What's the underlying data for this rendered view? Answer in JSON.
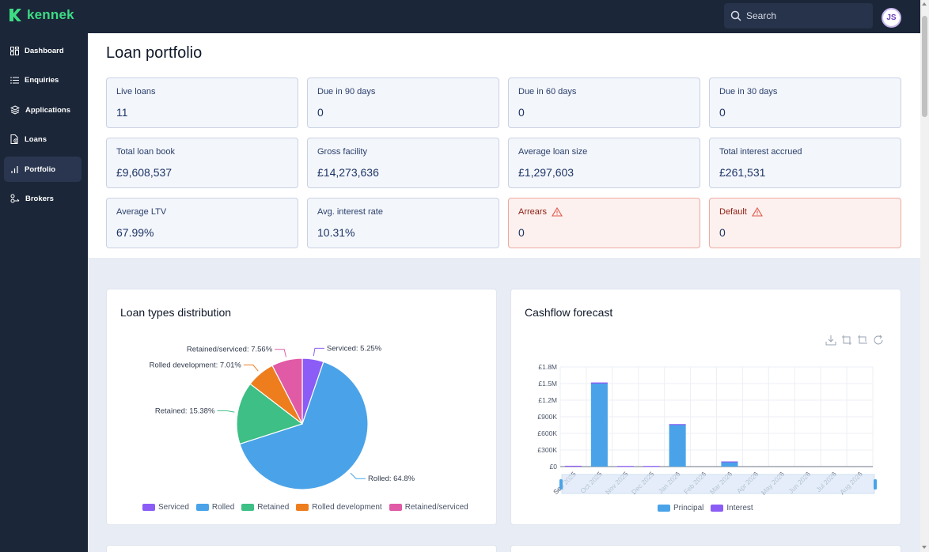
{
  "app": {
    "logo_text": "kennek",
    "search_placeholder": "Search",
    "user_initials": "JS"
  },
  "sidebar": {
    "items": [
      {
        "label": "Dashboard",
        "icon": "grid-icon"
      },
      {
        "label": "Enquiries",
        "icon": "list-icon"
      },
      {
        "label": "Applications",
        "icon": "layers-icon"
      },
      {
        "label": "Loans",
        "icon": "file-icon"
      },
      {
        "label": "Portfolio",
        "icon": "bar-chart-icon",
        "active": true
      },
      {
        "label": "Brokers",
        "icon": "users-icon"
      }
    ]
  },
  "page": {
    "title": "Loan portfolio"
  },
  "stats": [
    {
      "label": "Live loans",
      "value": "11"
    },
    {
      "label": "Due in 90 days",
      "value": "0"
    },
    {
      "label": "Due in 60 days",
      "value": "0"
    },
    {
      "label": "Due in 30 days",
      "value": "0"
    },
    {
      "label": "Total loan book",
      "value": "£9,608,537"
    },
    {
      "label": "Gross facility",
      "value": "£14,273,636"
    },
    {
      "label": "Average loan size",
      "value": "£1,297,603"
    },
    {
      "label": "Total interest accrued",
      "value": "£261,531"
    },
    {
      "label": "Average LTV",
      "value": "67.99%"
    },
    {
      "label": "Avg. interest rate",
      "value": "10.31%"
    },
    {
      "label": "Arrears",
      "value": "0",
      "alert": true
    },
    {
      "label": "Default",
      "value": "0",
      "alert": true
    }
  ],
  "colors": {
    "serviced": "#8b5cf6",
    "rolled": "#4aa3e8",
    "retained": "#3dbf85",
    "rolled_development": "#ee7d1e",
    "retained_serviced": "#e05aa6",
    "principal": "#4aa3e8",
    "interest": "#8b5cf6"
  },
  "chart_data": [
    {
      "type": "pie",
      "title": "Loan types distribution",
      "slices": [
        {
          "name": "Serviced",
          "value": 5.25,
          "label": "Serviced: 5.25%"
        },
        {
          "name": "Rolled",
          "value": 64.8,
          "label": "Rolled: 64.8%"
        },
        {
          "name": "Retained",
          "value": 15.38,
          "label": "Retained: 15.38%"
        },
        {
          "name": "Rolled development",
          "value": 7.01,
          "label": "Rolled development: 7.01%"
        },
        {
          "name": "Retained/serviced",
          "value": 7.56,
          "label": "Retained/serviced: 7.56%"
        }
      ],
      "legend_position": "bottom"
    },
    {
      "type": "bar",
      "title": "Cashflow forecast",
      "categories": [
        "Sep 2025",
        "Oct 2025",
        "Nov 2025",
        "Dec 2025",
        "Jan 2026",
        "Feb 2026",
        "Mar 2026",
        "Apr 2026",
        "May 2026",
        "Jun 2026",
        "Jul 2026",
        "Aug 2026"
      ],
      "series": [
        {
          "name": "Principal",
          "values": [
            0,
            1500000,
            0,
            0,
            760000,
            0,
            90000,
            0,
            0,
            0,
            0,
            0
          ]
        },
        {
          "name": "Interest",
          "values": [
            15000,
            20000,
            12000,
            12000,
            8000,
            0,
            3000,
            0,
            0,
            0,
            0,
            0
          ]
        }
      ],
      "yticks": [
        "£0",
        "£300K",
        "£600K",
        "£900K",
        "£1.2M",
        "£1.5M",
        "£1.8M"
      ],
      "ylim": [
        0,
        1800000
      ],
      "grid": true,
      "legend_position": "bottom"
    }
  ]
}
